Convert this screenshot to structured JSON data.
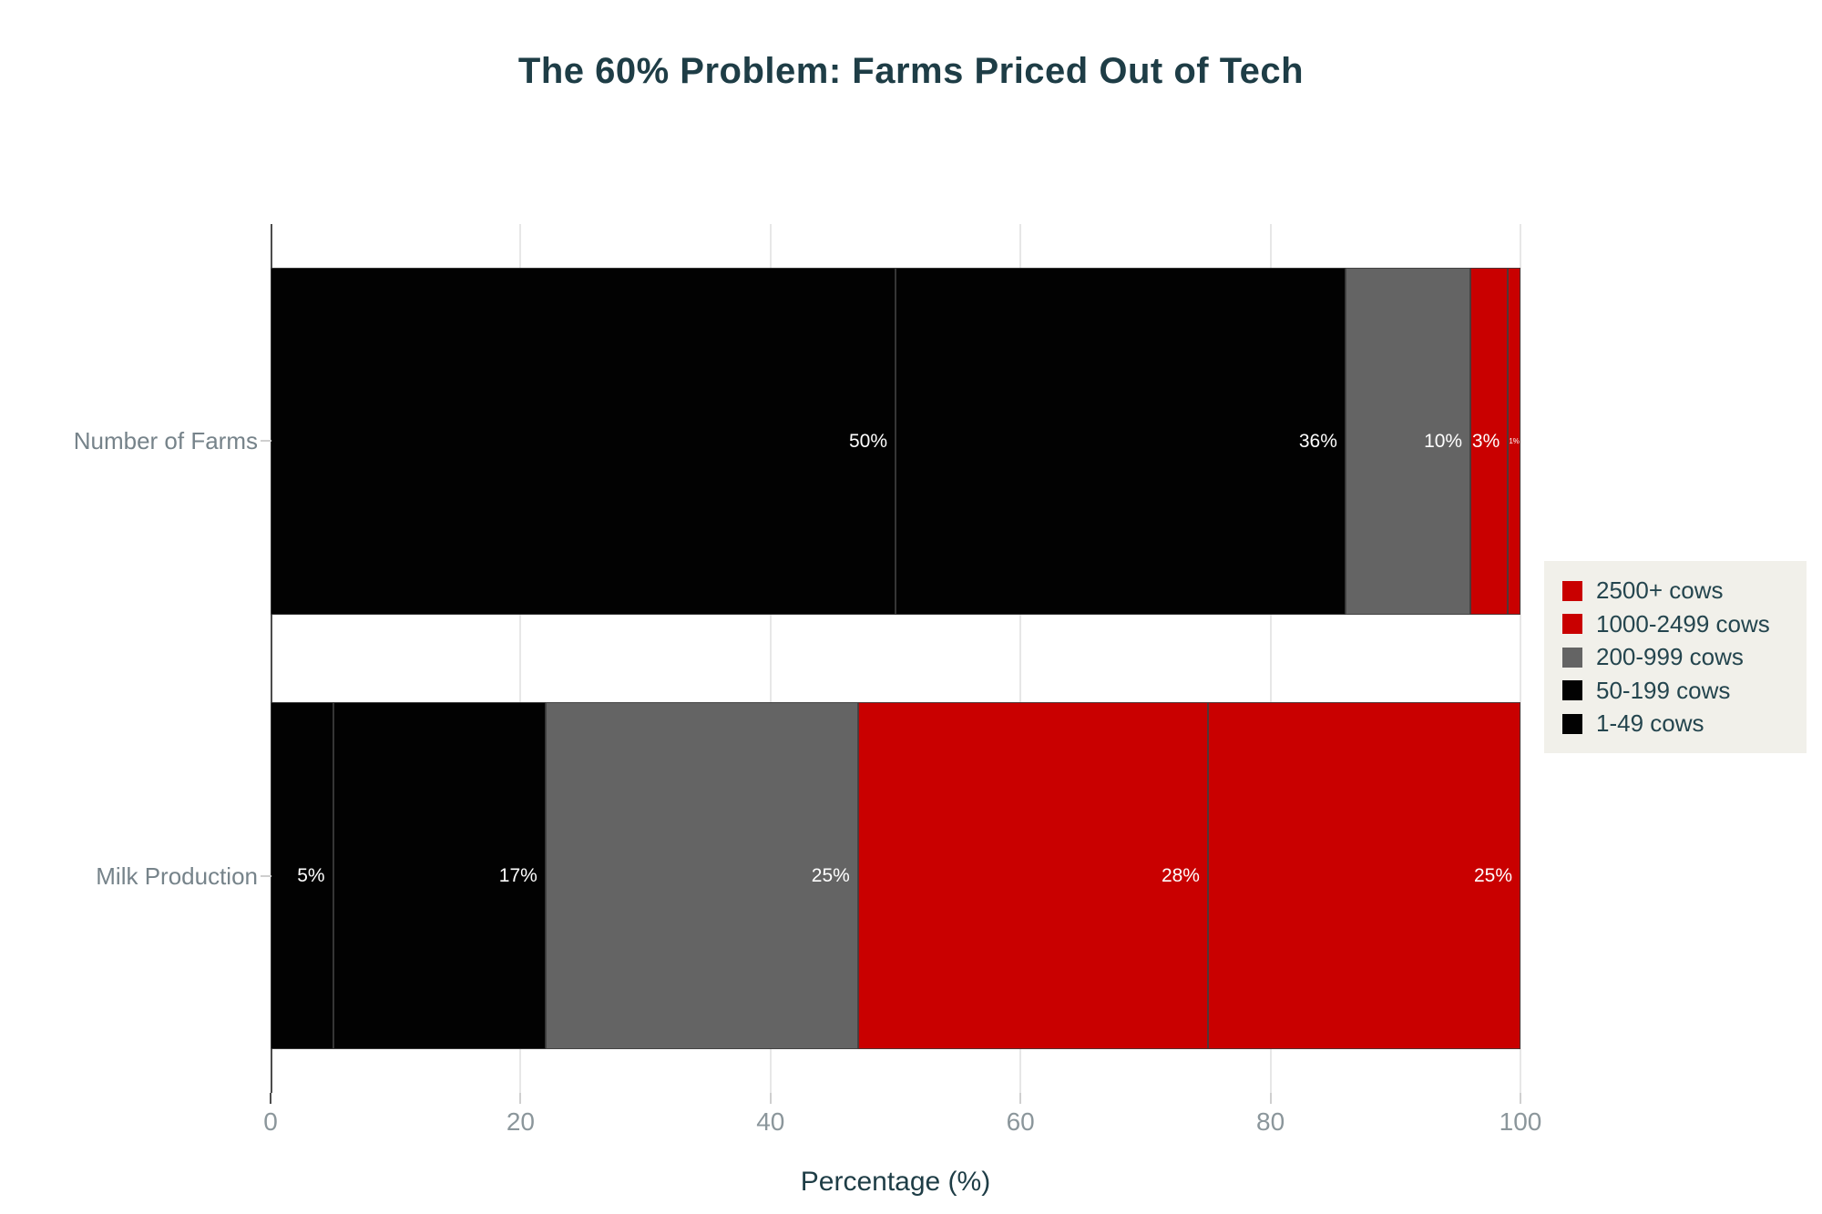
{
  "page": {
    "background": "#ffffff"
  },
  "colors": {
    "title_text": "#1e3d46",
    "axis_text": "#8b969b",
    "category_text": "#76838a",
    "legend_background": "#f1f0ea",
    "legend_text": "#24454e",
    "bar_red": "#c90000",
    "bar_gray": "#646464",
    "bar_black": "#020202",
    "gridline": "#e7e7e7",
    "axis_line": "#4d4d4d"
  },
  "chart_data": {
    "type": "bar",
    "stacked": true,
    "orientation": "horizontal",
    "title": "The 60% Problem: Farms Priced Out of Tech",
    "xlabel": "Percentage (%)",
    "xlim": [
      0,
      100
    ],
    "xticks": [
      0,
      20,
      40,
      60,
      80,
      100
    ],
    "xtick_labels": [
      "0",
      "20",
      "40",
      "60",
      "80",
      "100"
    ],
    "grid": "vertical-light",
    "legend_position": "right",
    "categories": [
      "Number of Farms",
      "Milk Production"
    ],
    "series": [
      {
        "name": "1-49 cows",
        "color": "#020202",
        "values": [
          50,
          5
        ],
        "labels": [
          "50%",
          "5%"
        ]
      },
      {
        "name": "50-199 cows",
        "color": "#020202",
        "values": [
          36,
          17
        ],
        "labels": [
          "36%",
          "17%"
        ]
      },
      {
        "name": "200-999 cows",
        "color": "#646464",
        "values": [
          10,
          25
        ],
        "labels": [
          "10%",
          "25%"
        ]
      },
      {
        "name": "1000-2499 cows",
        "color": "#c90000",
        "values": [
          3,
          28
        ],
        "labels": [
          "3%",
          "28%"
        ]
      },
      {
        "name": "2500+ cows",
        "color": "#c90000",
        "values": [
          1,
          25
        ],
        "labels": [
          "1%",
          "25%"
        ]
      }
    ],
    "legend_items": [
      {
        "label": "2500+ cows",
        "color": "#c90000"
      },
      {
        "label": "1000-2499 cows",
        "color": "#c90000"
      },
      {
        "label": "200-999 cows",
        "color": "#646464"
      },
      {
        "label": "50-199 cows",
        "color": "#020202"
      },
      {
        "label": "1-49 cows",
        "color": "#020202"
      }
    ]
  }
}
